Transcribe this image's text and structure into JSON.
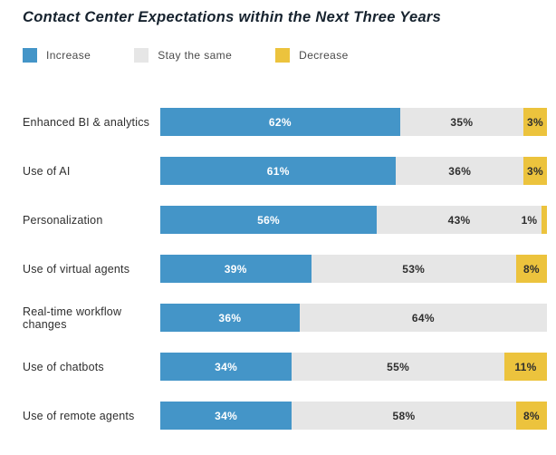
{
  "title": "Contact Center Expectations within the Next Three Years",
  "colors": {
    "increase": "#4495c8",
    "stay_same": "#e6e6e6",
    "decrease": "#ecc33d"
  },
  "legend": [
    {
      "label": "Increase",
      "color": "#4495c8"
    },
    {
      "label": "Stay the same",
      "color": "#e6e6e6"
    },
    {
      "label": "Decrease",
      "color": "#ecc33d"
    }
  ],
  "chart_data": {
    "type": "bar",
    "orientation": "horizontal-stacked",
    "title": "Contact Center Expectations within the Next Three Years",
    "value_format": "percent",
    "legend_position": "top",
    "categories": [
      "Enhanced BI & analytics",
      "Use of AI",
      "Personalization",
      "Use of virtual agents",
      "Real-time workflow changes",
      "Use of chatbots",
      "Use of remote agents"
    ],
    "series": [
      {
        "name": "Increase",
        "color": "#4495c8",
        "values": [
          62,
          61,
          56,
          39,
          36,
          34,
          34
        ]
      },
      {
        "name": "Stay the same",
        "color": "#e6e6e6",
        "values": [
          35,
          36,
          43,
          53,
          64,
          55,
          58
        ]
      },
      {
        "name": "Decrease",
        "color": "#ecc33d",
        "values": [
          3,
          3,
          1,
          8,
          0,
          11,
          8
        ]
      }
    ]
  }
}
